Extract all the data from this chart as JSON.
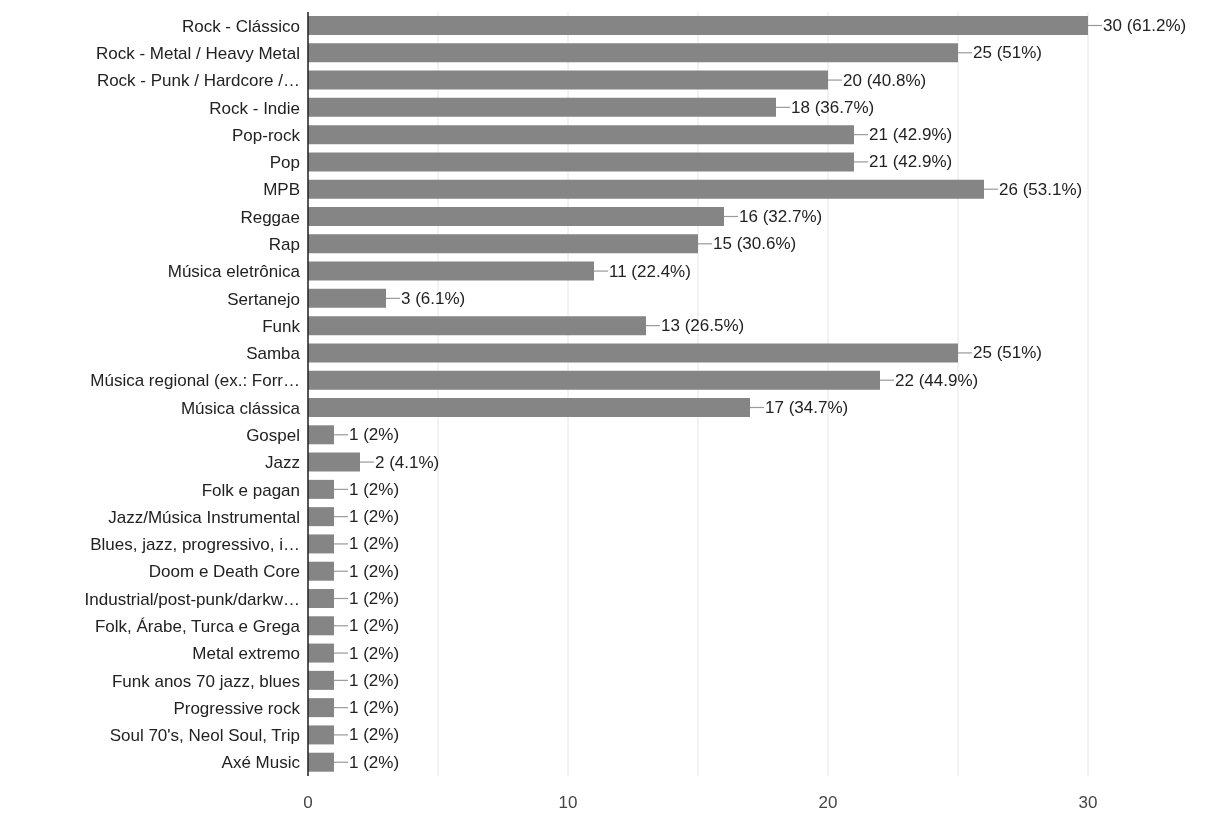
{
  "chart_data": {
    "type": "bar",
    "orientation": "horizontal",
    "categories": [
      "Rock - Clássico",
      "Rock - Metal / Heavy Metal",
      "Rock - Punk / Hardcore /…",
      "Rock - Indie",
      "Pop-rock",
      "Pop",
      "MPB",
      "Reggae",
      "Rap",
      "Música eletrônica",
      "Sertanejo",
      "Funk",
      "Samba",
      "Música regional (ex.: Forr…",
      "Música clássica",
      "Gospel",
      "Jazz",
      "Folk e pagan",
      "Jazz/Música Instrumental",
      "Blues, jazz, progressivo, i…",
      "Doom e Death Core",
      "Industrial/post-punk/darkw…",
      "Folk, Árabe, Turca e Grega",
      "Metal extremo",
      "Funk anos 70 jazz, blues",
      "Progressive rock",
      "Soul 70's, Neol Soul, Trip",
      "Axé Music"
    ],
    "values": [
      30,
      25,
      20,
      18,
      21,
      21,
      26,
      16,
      15,
      11,
      3,
      13,
      25,
      22,
      17,
      1,
      2,
      1,
      1,
      1,
      1,
      1,
      1,
      1,
      1,
      1,
      1,
      1
    ],
    "value_labels": [
      "30 (61.2%)",
      "25 (51%)",
      "20 (40.8%)",
      "18 (36.7%)",
      "21 (42.9%)",
      "21 (42.9%)",
      "26 (53.1%)",
      "16 (32.7%)",
      "15 (30.6%)",
      "11 (22.4%)",
      "3 (6.1%)",
      "13 (26.5%)",
      "25 (51%)",
      "22 (44.9%)",
      "17 (34.7%)",
      "1 (2%)",
      "2 (4.1%)",
      "1 (2%)",
      "1 (2%)",
      "1 (2%)",
      "1 (2%)",
      "1 (2%)",
      "1 (2%)",
      "1 (2%)",
      "1 (2%)",
      "1 (2%)",
      "1 (2%)",
      "1 (2%)"
    ],
    "color": "#858585",
    "xlim": [
      0,
      30
    ],
    "xticks": [
      0,
      {
        "value": 5,
        "label": null
      },
      10,
      {
        "value": 15,
        "label": null
      },
      20,
      {
        "value": 25,
        "label": null
      },
      30
    ],
    "grid": "x",
    "legend": false
  }
}
